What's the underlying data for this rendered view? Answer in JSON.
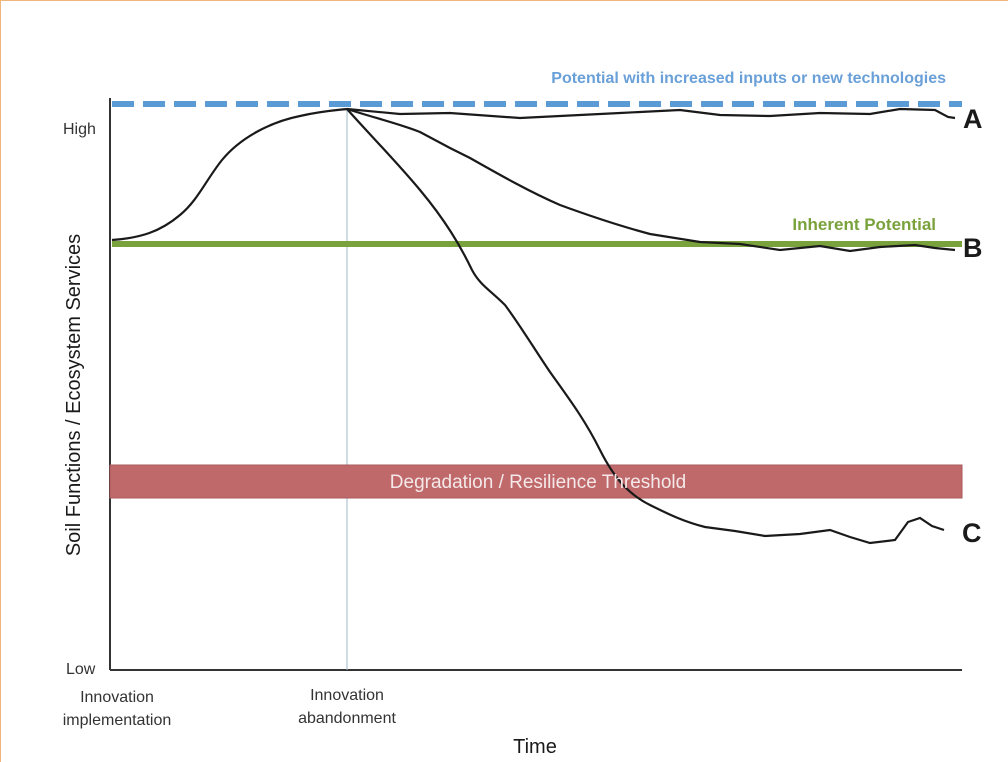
{
  "figure": {
    "y_axis_title": "Soil Functions / Ecosystem Services",
    "x_axis_title": "Time",
    "y_high_label": "High",
    "y_low_label": "Low",
    "x_tick_labels": [
      {
        "line1": "Innovation",
        "line2": "implementation"
      },
      {
        "line1": "Innovation",
        "line2": "abandonment"
      }
    ],
    "potential_label": "Potential with increased inputs or new technologies",
    "inherent_label": "Inherent Potential",
    "threshold_label": "Degradation / Resilience Threshold",
    "curve_labels": [
      "A",
      "B",
      "C"
    ]
  },
  "colors": {
    "potential_line": "#5b9bd5",
    "potential_text": "#6aa0d8",
    "inherent_line": "#7aa23c",
    "inherent_text": "#7aa23c",
    "threshold_fill": "#c0696b",
    "threshold_text": "#f4e8e8",
    "curve": "#1a1a1a",
    "axis": "#333333",
    "frame": "#f0b878"
  }
}
